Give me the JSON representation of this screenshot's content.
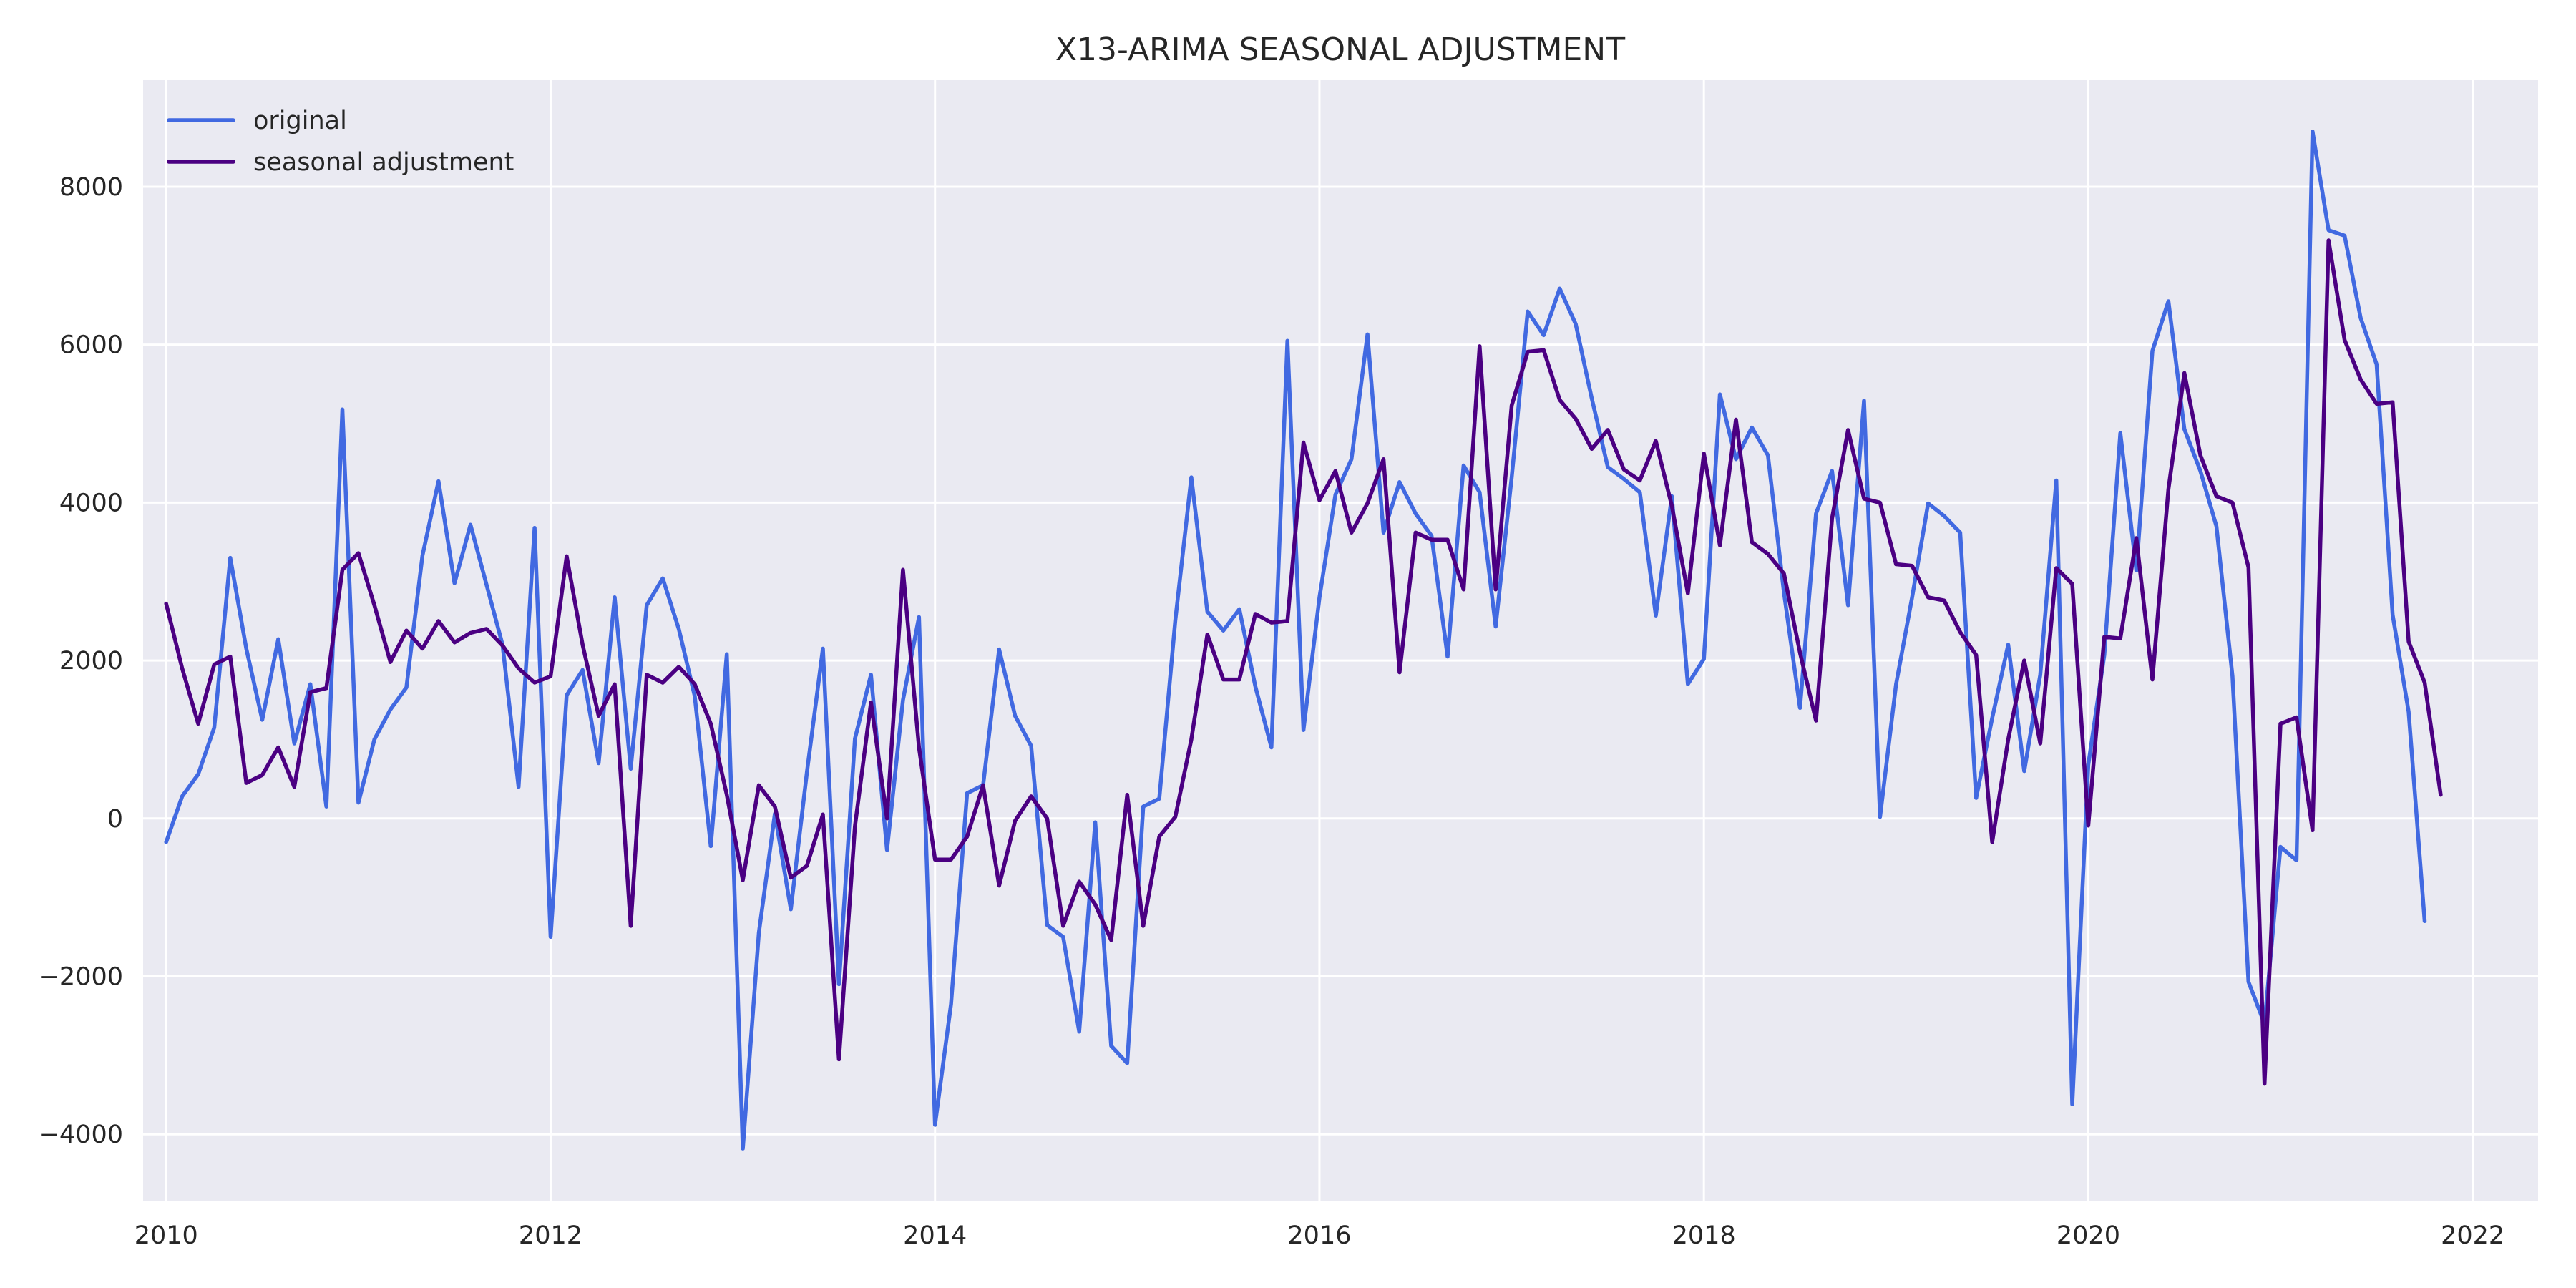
{
  "chart_data": {
    "type": "line",
    "title": "X13-ARIMA SEASONAL ADJUSTMENT",
    "xlabel": "",
    "ylabel": "",
    "x_start": "2010-01",
    "x_ticks": [
      2010,
      2012,
      2014,
      2016,
      2018,
      2020,
      2022
    ],
    "y_ticks": [
      -4000,
      -2000,
      0,
      2000,
      4000,
      6000,
      8000
    ],
    "xlim": [
      2009.88,
      2022.34
    ],
    "ylim": [
      -4850,
      9350
    ],
    "grid": true,
    "legend_position": "top-left",
    "background": "#eaeaf2",
    "series": [
      {
        "name": "original",
        "color": "#4169e1",
        "values": [
          -300,
          280,
          560,
          1150,
          3300,
          2150,
          1250,
          2270,
          950,
          1700,
          150,
          5180,
          200,
          1000,
          1380,
          1660,
          3330,
          4270,
          2980,
          3720,
          2960,
          2200,
          400,
          3680,
          -1500,
          1560,
          1880,
          700,
          2800,
          630,
          2700,
          3040,
          2400,
          1550,
          -350,
          2080,
          -4180,
          -1450,
          60,
          -1150,
          580,
          2150,
          -2100,
          1010,
          1820,
          -400,
          1500,
          2550,
          -3880,
          -2350,
          320,
          420,
          2140,
          1300,
          920,
          -1350,
          -1500,
          -2700,
          -50,
          -2880,
          -3100,
          150,
          250,
          2510,
          4320,
          2620,
          2380,
          2650,
          1670,
          900,
          6050,
          1120,
          2800,
          4100,
          4550,
          6130,
          3620,
          4260,
          3860,
          3580,
          2050,
          4470,
          4130,
          2430,
          4320,
          6420,
          6120,
          6710,
          6260,
          5320,
          4450,
          4300,
          4130,
          2570,
          4080,
          1700,
          2020,
          5370,
          4550,
          4950,
          4600,
          2860,
          1400,
          3860,
          4400,
          2700,
          5290,
          20,
          1700,
          2800,
          3990,
          3830,
          3620,
          260,
          1270,
          2200,
          600,
          1820,
          4280,
          -3620,
          680,
          2070,
          4880,
          3140,
          5920,
          6550,
          4930,
          4400,
          3700,
          1800,
          -2070,
          -2600,
          -360,
          -530,
          8700,
          7450,
          7380,
          6340,
          5750,
          2580,
          1350,
          -1300
        ]
      },
      {
        "name": "seasonal adjustment",
        "color": "#4b0082",
        "values": [
          2720,
          1900,
          1200,
          1950,
          2050,
          450,
          550,
          900,
          400,
          1600,
          1650,
          3150,
          3360,
          2700,
          1980,
          2380,
          2150,
          2500,
          2230,
          2350,
          2400,
          2190,
          1900,
          1720,
          1800,
          3320,
          2200,
          1300,
          1700,
          -1360,
          1820,
          1720,
          1920,
          1700,
          1200,
          300,
          -780,
          420,
          150,
          -750,
          -600,
          50,
          -3050,
          -100,
          1470,
          0,
          3150,
          900,
          -520,
          -520,
          -230,
          420,
          -850,
          -30,
          280,
          0,
          -1360,
          -800,
          -1090,
          -1540,
          300,
          -1360,
          -230,
          20,
          1000,
          2330,
          1760,
          1760,
          2590,
          2480,
          2500,
          4760,
          4030,
          4400,
          3620,
          3990,
          4550,
          1850,
          3620,
          3530,
          3530,
          2900,
          5980,
          2900,
          5230,
          5910,
          5930,
          5300,
          5060,
          4680,
          4920,
          4420,
          4280,
          4780,
          3960,
          2850,
          4620,
          3460,
          5050,
          3500,
          3350,
          3100,
          2100,
          1240,
          3800,
          4920,
          4050,
          4000,
          3220,
          3200,
          2800,
          2760,
          2360,
          2070,
          -300,
          1000,
          2000,
          950,
          3170,
          2970,
          -90,
          2300,
          2280,
          3550,
          1760,
          4170,
          5640,
          4600,
          4080,
          4000,
          3180,
          -3360,
          1200,
          1280,
          -150,
          7320,
          6060,
          5560,
          5250,
          5270,
          2240,
          1720,
          300
        ]
      }
    ]
  }
}
